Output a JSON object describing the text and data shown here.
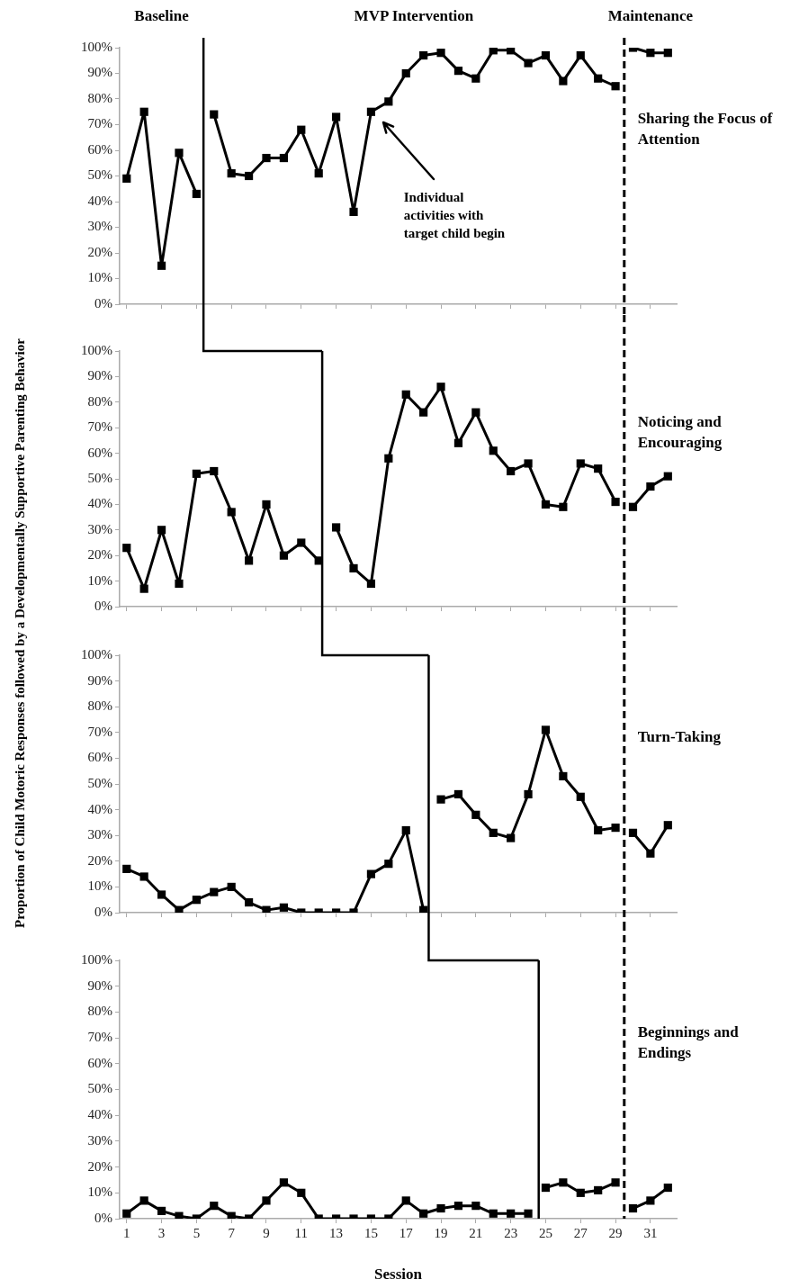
{
  "chart_data": [
    {
      "type": "line",
      "ylabel": "Proportion of Child Motoric Responses followed by a Developmentally Supportive Parenting Behavior",
      "x": [
        1,
        2,
        3,
        4,
        5,
        6,
        7,
        8,
        9,
        10,
        11,
        12,
        13,
        14,
        15,
        16,
        17,
        18,
        19,
        20,
        21,
        22,
        23,
        24,
        25,
        26,
        27,
        28,
        29,
        30,
        31,
        32
      ],
      "series": [
        {
          "color": "#000000",
          "values": [
            49,
            75,
            15,
            59,
            43,
            74,
            51,
            50,
            57,
            57,
            68,
            51,
            73,
            36,
            75,
            79,
            90,
            97,
            98,
            91,
            88,
            99,
            99,
            94,
            97,
            87,
            97,
            88,
            85,
            100,
            98,
            98
          ]
        }
      ],
      "xlim": [
        0.6,
        32.5
      ],
      "xticks": [
        1,
        3,
        5,
        7,
        9,
        11,
        13,
        15,
        17,
        19,
        21,
        23,
        25,
        27,
        29,
        31
      ],
      "ylim": [
        0,
        100
      ],
      "yticks": [
        {
          "value": 0,
          "label": "0%"
        },
        {
          "value": 10,
          "label": "10%"
        },
        {
          "value": 20,
          "label": "20%"
        },
        {
          "value": 30,
          "label": "30%"
        },
        {
          "value": 40,
          "label": "40%"
        },
        {
          "value": 50,
          "label": "50%"
        },
        {
          "value": 60,
          "label": "60%"
        },
        {
          "value": 70,
          "label": "70%"
        },
        {
          "value": 80,
          "label": "80%"
        },
        {
          "value": 90,
          "label": "90%"
        },
        {
          "value": 100,
          "label": "100%"
        }
      ],
      "tick_labels": "y",
      "marker": "square",
      "line_style": "solid",
      "ref_lines": [
        {
          "axis": "x",
          "value": 5.4,
          "line_style": "solid"
        },
        {
          "axis": "x",
          "value": 29.5,
          "line_style": "dashed"
        }
      ],
      "annotations": [
        "Baseline",
        "MVP Intervention",
        "Maintenance",
        "Sharing the Focus of Attention",
        "Individual activities with target child begin"
      ]
    },
    {
      "type": "line",
      "x": [
        1,
        2,
        3,
        4,
        5,
        6,
        7,
        8,
        9,
        10,
        11,
        12,
        13,
        14,
        15,
        16,
        17,
        18,
        19,
        20,
        21,
        22,
        23,
        24,
        25,
        26,
        27,
        28,
        29,
        30,
        31,
        32
      ],
      "series": [
        {
          "color": "#000000",
          "values": [
            23,
            7,
            30,
            9,
            52,
            53,
            37,
            18,
            40,
            20,
            25,
            18,
            31,
            15,
            9,
            58,
            83,
            76,
            86,
            64,
            76,
            61,
            53,
            56,
            40,
            39,
            56,
            54,
            41,
            39,
            47,
            51
          ]
        }
      ],
      "xlim": [
        0.6,
        32.5
      ],
      "xticks": [
        1,
        3,
        5,
        7,
        9,
        11,
        13,
        15,
        17,
        19,
        21,
        23,
        25,
        27,
        29,
        31
      ],
      "ylim": [
        0,
        100
      ],
      "yticks": [
        {
          "value": 0,
          "label": "0%"
        },
        {
          "value": 10,
          "label": "10%"
        },
        {
          "value": 20,
          "label": "20%"
        },
        {
          "value": 30,
          "label": "30%"
        },
        {
          "value": 40,
          "label": "40%"
        },
        {
          "value": 50,
          "label": "50%"
        },
        {
          "value": 60,
          "label": "60%"
        },
        {
          "value": 70,
          "label": "70%"
        },
        {
          "value": 80,
          "label": "80%"
        },
        {
          "value": 90,
          "label": "90%"
        },
        {
          "value": 100,
          "label": "100%"
        }
      ],
      "tick_labels": "y",
      "marker": "square",
      "line_style": "solid",
      "ref_lines": [
        {
          "axis": "x",
          "value": 12.2,
          "line_style": "solid"
        },
        {
          "axis": "x",
          "value": 29.5,
          "line_style": "dashed"
        }
      ],
      "annotations": [
        "Noticing and Encouraging"
      ]
    },
    {
      "type": "line",
      "x": [
        1,
        2,
        3,
        4,
        5,
        6,
        7,
        8,
        9,
        10,
        11,
        12,
        13,
        14,
        15,
        16,
        17,
        18,
        19,
        20,
        21,
        22,
        23,
        24,
        25,
        26,
        27,
        28,
        29,
        30,
        31,
        32
      ],
      "series": [
        {
          "color": "#000000",
          "values": [
            17,
            14,
            7,
            1,
            5,
            8,
            10,
            4,
            1,
            2,
            0,
            0,
            0,
            0,
            15,
            19,
            32,
            1,
            44,
            46,
            38,
            31,
            29,
            46,
            71,
            53,
            45,
            32,
            33,
            31,
            23,
            34
          ]
        }
      ],
      "xlim": [
        0.6,
        32.5
      ],
      "xticks": [
        1,
        3,
        5,
        7,
        9,
        11,
        13,
        15,
        17,
        19,
        21,
        23,
        25,
        27,
        29,
        31
      ],
      "ylim": [
        0,
        100
      ],
      "yticks": [
        {
          "value": 0,
          "label": "0%"
        },
        {
          "value": 10,
          "label": "10%"
        },
        {
          "value": 20,
          "label": "20%"
        },
        {
          "value": 30,
          "label": "30%"
        },
        {
          "value": 40,
          "label": "40%"
        },
        {
          "value": 50,
          "label": "50%"
        },
        {
          "value": 60,
          "label": "60%"
        },
        {
          "value": 70,
          "label": "70%"
        },
        {
          "value": 80,
          "label": "80%"
        },
        {
          "value": 90,
          "label": "90%"
        },
        {
          "value": 100,
          "label": "100%"
        }
      ],
      "tick_labels": "y",
      "marker": "square",
      "line_style": "solid",
      "ref_lines": [
        {
          "axis": "x",
          "value": 18.3,
          "line_style": "solid"
        },
        {
          "axis": "x",
          "value": 29.5,
          "line_style": "dashed"
        }
      ],
      "annotations": [
        "Turn-Taking"
      ]
    },
    {
      "type": "line",
      "xlabel": "Session",
      "x": [
        1,
        2,
        3,
        4,
        5,
        6,
        7,
        8,
        9,
        10,
        11,
        12,
        13,
        14,
        15,
        16,
        17,
        18,
        19,
        20,
        21,
        22,
        23,
        24,
        25,
        26,
        27,
        28,
        29,
        30,
        31,
        32
      ],
      "series": [
        {
          "color": "#000000",
          "values": [
            2,
            7,
            3,
            1,
            0,
            5,
            1,
            0,
            7,
            14,
            10,
            0,
            0,
            0,
            0,
            0,
            7,
            2,
            4,
            5,
            5,
            2,
            2,
            2,
            12,
            14,
            10,
            11,
            14,
            4,
            7,
            12
          ]
        }
      ],
      "xlim": [
        0.6,
        32.5
      ],
      "xticks": [
        1,
        3,
        5,
        7,
        9,
        11,
        13,
        15,
        17,
        19,
        21,
        23,
        25,
        27,
        29,
        31
      ],
      "ylim": [
        0,
        100
      ],
      "yticks": [
        {
          "value": 0,
          "label": "0%"
        },
        {
          "value": 10,
          "label": "10%"
        },
        {
          "value": 20,
          "label": "20%"
        },
        {
          "value": 30,
          "label": "30%"
        },
        {
          "value": 40,
          "label": "40%"
        },
        {
          "value": 50,
          "label": "50%"
        },
        {
          "value": 60,
          "label": "60%"
        },
        {
          "value": 70,
          "label": "70%"
        },
        {
          "value": 80,
          "label": "80%"
        },
        {
          "value": 90,
          "label": "90%"
        },
        {
          "value": 100,
          "label": "100%"
        }
      ],
      "marker": "square",
      "line_style": "solid",
      "ref_lines": [
        {
          "axis": "x",
          "value": 24.6,
          "line_style": "solid"
        },
        {
          "axis": "x",
          "value": 29.5,
          "line_style": "dashed"
        }
      ],
      "annotations": [
        "Beginnings and Endings"
      ]
    }
  ]
}
